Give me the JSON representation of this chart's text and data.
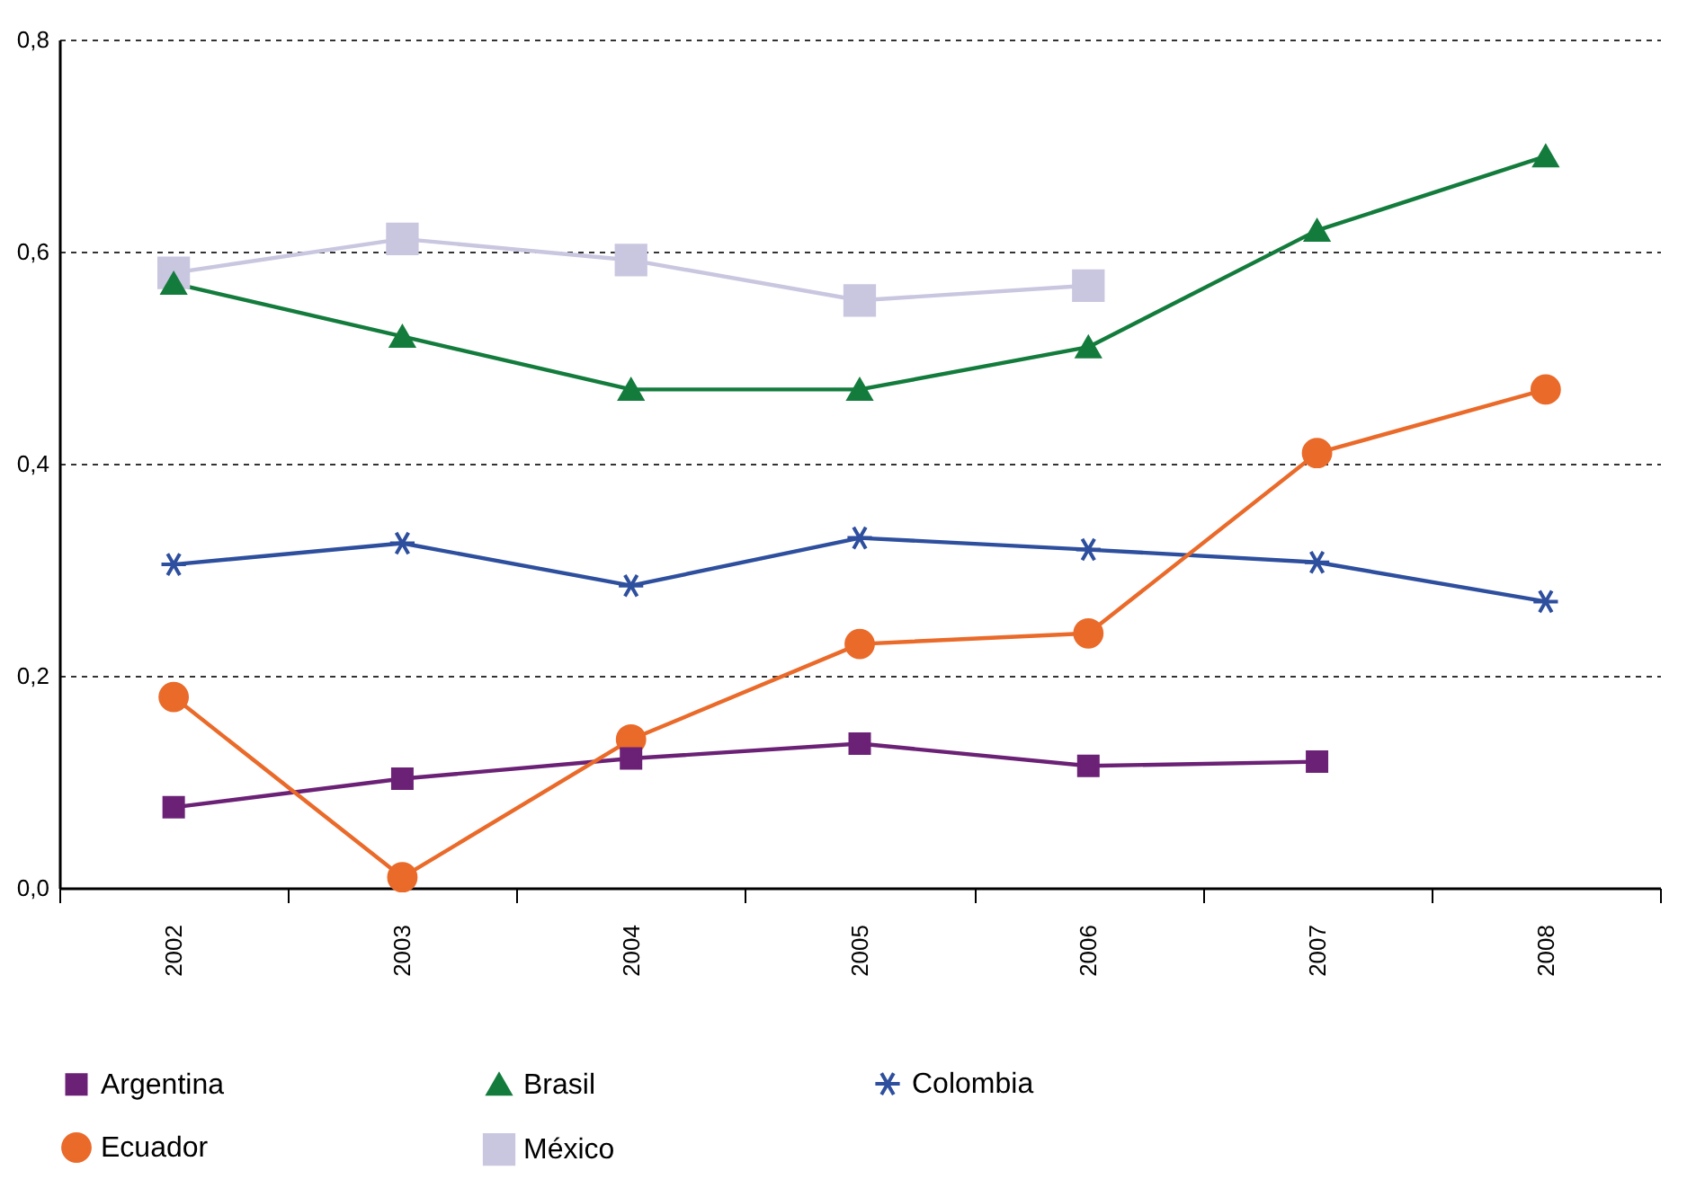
{
  "chart_data": {
    "type": "line",
    "categories": [
      "2002",
      "2003",
      "2004",
      "2005",
      "2006",
      "2007",
      "2008"
    ],
    "ylim": [
      0,
      0.8
    ],
    "yticks": [
      {
        "value": 0,
        "label": "0,0"
      },
      {
        "value": 0.2,
        "label": "0,2"
      },
      {
        "value": 0.4,
        "label": "0,4"
      },
      {
        "value": 0.6,
        "label": "0,6"
      },
      {
        "value": 0.8,
        "label": "0,8"
      }
    ],
    "grid": "y",
    "legend": "bottom",
    "series": [
      {
        "name": "Argentina",
        "color": "#6b2175",
        "marker": "square",
        "values": [
          0.076,
          0.103,
          0.122,
          0.136,
          0.115,
          0.119,
          null
        ]
      },
      {
        "name": "Brasil",
        "color": "#137c3c",
        "marker": "triangle",
        "values": [
          0.57,
          0.52,
          0.47,
          0.47,
          0.51,
          0.62,
          0.69
        ]
      },
      {
        "name": "Colombia",
        "color": "#2e4f9e",
        "marker": "cross",
        "values": [
          0.305,
          0.325,
          0.285,
          0.33,
          0.319,
          0.307,
          0.27
        ]
      },
      {
        "name": "Ecuador",
        "color": "#ea6a2a",
        "marker": "circle",
        "values": [
          0.18,
          0.01,
          0.14,
          0.23,
          0.24,
          0.41,
          0.47
        ]
      },
      {
        "name": "México",
        "color": "#c9c6e0",
        "marker": "square",
        "values": [
          0.58,
          0.612,
          0.592,
          0.554,
          0.568,
          null,
          null
        ]
      }
    ]
  }
}
